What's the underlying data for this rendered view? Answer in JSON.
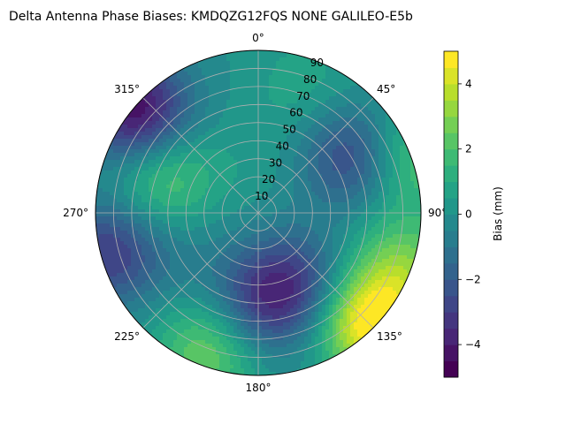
{
  "chart_data": {
    "type": "heatmap",
    "subtype": "polar-filled-contour",
    "title": "Delta Antenna Phase Biases: KMDQZG12FQS     NONE GALILEO-E5b",
    "angular_ticks": [
      "0°",
      "45°",
      "90°",
      "135°",
      "180°",
      "225°",
      "270°",
      "315°"
    ],
    "angular_tick_values": [
      0,
      45,
      90,
      135,
      180,
      225,
      270,
      315
    ],
    "radial_ticks": [
      "10",
      "20",
      "30",
      "40",
      "50",
      "60",
      "70",
      "80",
      "90"
    ],
    "radial_tick_values": [
      10,
      20,
      30,
      40,
      50,
      60,
      70,
      80,
      90
    ],
    "radial_range": [
      0,
      90
    ],
    "angular_direction": "clockwise",
    "angular_zero": "top",
    "grid": true,
    "colorbar": {
      "label": "Bias (mm)",
      "range": [
        -5,
        5
      ],
      "ticks": [
        "−4",
        "−2",
        "0",
        "2",
        "4"
      ],
      "tick_values": [
        -4,
        -2,
        0,
        2,
        4
      ],
      "levels": [
        -5,
        -4.5,
        -4,
        -3.5,
        -3,
        -2.5,
        -2,
        -1.5,
        -1,
        -0.5,
        0,
        0.5,
        1,
        1.5,
        2,
        2.5,
        3,
        3.5,
        4,
        4.5,
        5
      ],
      "colormap": "viridis"
    },
    "field_features": [
      {
        "azimuth": 290,
        "zenith": 55,
        "bias_mm": 2.2
      },
      {
        "azimuth": 60,
        "zenith": 62,
        "bias_mm": -3.0
      },
      {
        "azimuth": 310,
        "zenith": 88,
        "bias_mm": -4.5
      },
      {
        "azimuth": 20,
        "zenith": 75,
        "bias_mm": 0.8
      },
      {
        "azimuth": 150,
        "zenith": 42,
        "bias_mm": -2.0
      },
      {
        "azimuth": 175,
        "zenith": 50,
        "bias_mm": -2.8
      },
      {
        "azimuth": 200,
        "zenith": 82,
        "bias_mm": 2.6
      },
      {
        "azimuth": 135,
        "zenith": 88,
        "bias_mm": 5.0
      },
      {
        "azimuth": 110,
        "zenith": 85,
        "bias_mm": 2.5
      },
      {
        "azimuth": 70,
        "zenith": 88,
        "bias_mm": 2.5
      },
      {
        "azimuth": 255,
        "zenith": 85,
        "bias_mm": -3.0
      },
      {
        "azimuth": 240,
        "zenith": 45,
        "bias_mm": -0.5
      },
      {
        "azimuth": 0,
        "zenith": 30,
        "bias_mm": 0.3
      }
    ],
    "field_background_mm": 0.0
  }
}
